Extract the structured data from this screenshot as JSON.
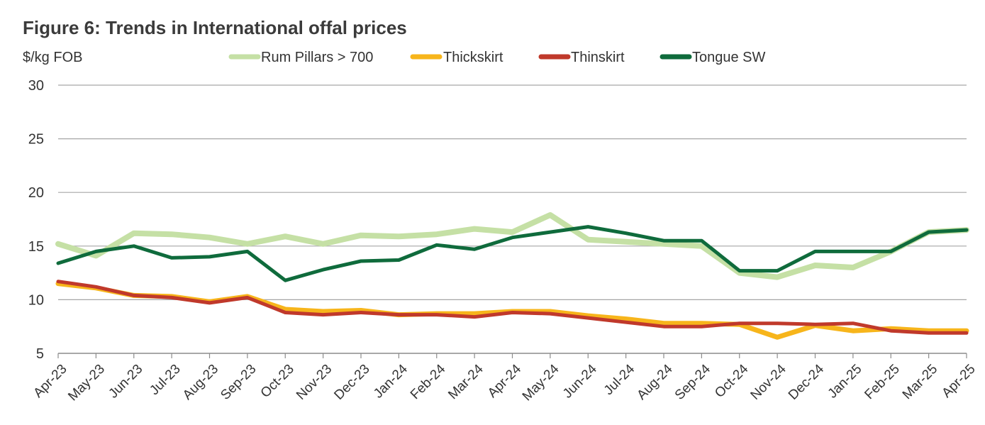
{
  "chart_data": {
    "type": "line",
    "title": "Figure 6: Trends in International offal prices",
    "ylabel": "$/kg FOB",
    "xlabel": "",
    "ylim": [
      5,
      30
    ],
    "yticks": [
      5,
      10,
      15,
      20,
      25,
      30
    ],
    "grid": true,
    "legend_position": "top",
    "categories": [
      "Apr-23",
      "May-23",
      "Jun-23",
      "Jul-23",
      "Aug-23",
      "Sep-23",
      "Oct-23",
      "Nov-23",
      "Dec-23",
      "Jan-24",
      "Feb-24",
      "Mar-24",
      "Apr-24",
      "May-24",
      "Jun-24",
      "Jul-24",
      "Aug-24",
      "Sep-24",
      "Oct-24",
      "Nov-24",
      "Dec-24",
      "Jan-25",
      "Feb-25",
      "Mar-25",
      "Apr-25"
    ],
    "series": [
      {
        "name": "Rum Pillars > 700",
        "color": "#c5e0a5",
        "values": [
          15.2,
          14.1,
          16.2,
          16.1,
          15.8,
          15.2,
          15.9,
          15.2,
          16.0,
          15.9,
          16.1,
          16.6,
          16.3,
          17.9,
          15.6,
          15.4,
          15.2,
          15.0,
          12.5,
          12.1,
          13.2,
          13.0,
          14.5,
          16.3,
          16.5
        ]
      },
      {
        "name": "Thickskirt",
        "color": "#f7b51b",
        "values": [
          11.5,
          11.1,
          10.4,
          10.3,
          9.8,
          10.3,
          9.1,
          8.9,
          9.0,
          8.6,
          8.7,
          8.7,
          8.9,
          8.9,
          8.5,
          8.2,
          7.8,
          7.8,
          7.7,
          6.5,
          7.6,
          7.1,
          7.3,
          7.1,
          7.1
        ]
      },
      {
        "name": "Thinskirt",
        "color": "#c0392b",
        "values": [
          11.7,
          11.2,
          10.4,
          10.2,
          9.7,
          10.2,
          8.8,
          8.6,
          8.8,
          8.6,
          8.6,
          8.4,
          8.8,
          8.7,
          8.3,
          7.9,
          7.5,
          7.5,
          7.8,
          7.8,
          7.7,
          7.8,
          7.1,
          6.9,
          6.9
        ]
      },
      {
        "name": "Tongue SW",
        "color": "#0f6b3c",
        "values": [
          13.4,
          14.5,
          15.0,
          13.9,
          14.0,
          14.5,
          11.8,
          12.8,
          13.6,
          13.7,
          15.1,
          14.7,
          15.8,
          16.3,
          16.8,
          16.2,
          15.5,
          15.5,
          12.7,
          12.7,
          14.5,
          14.5,
          14.5,
          16.3,
          16.5
        ]
      }
    ]
  }
}
